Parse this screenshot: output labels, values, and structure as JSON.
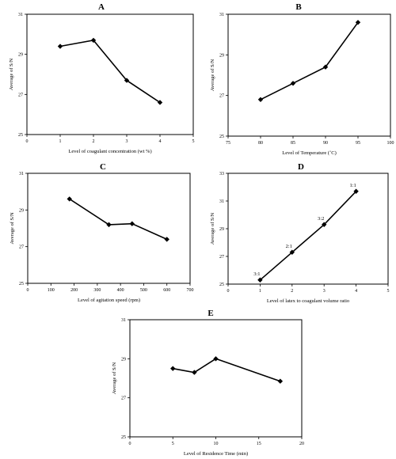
{
  "chart_data": [
    {
      "type": "line",
      "title": "A",
      "xlabel": "Level of coagulant concentration (wt %)",
      "ylabel": "Average of S/N",
      "xlim": [
        0,
        5
      ],
      "ylim": [
        25,
        31
      ],
      "x_ticks": [
        0,
        1,
        2,
        3,
        4,
        5
      ],
      "y_ticks": [
        25,
        27,
        29,
        31
      ],
      "x": [
        1,
        2,
        3,
        4
      ],
      "y": [
        29.4,
        29.7,
        27.7,
        26.6
      ],
      "point_labels": [],
      "grid": false,
      "legend": "none"
    },
    {
      "type": "line",
      "title": "B",
      "xlabel": "Level of Temperature (˚C)",
      "ylabel": "Average of S/N",
      "xlim": [
        75,
        100
      ],
      "ylim": [
        25,
        31
      ],
      "x_ticks": [
        75,
        80,
        85,
        90,
        95,
        100
      ],
      "y_ticks": [
        25,
        27,
        29,
        31
      ],
      "x": [
        80,
        85,
        90,
        95
      ],
      "y": [
        26.8,
        27.6,
        28.4,
        30.6
      ],
      "point_labels": [],
      "grid": false,
      "legend": "none"
    },
    {
      "type": "line",
      "title": "C",
      "xlabel": "Level of agitation speed (rpm)",
      "ylabel": "Average of S/N",
      "xlim": [
        0,
        700
      ],
      "ylim": [
        25,
        31
      ],
      "x_ticks": [
        0,
        100,
        200,
        300,
        400,
        500,
        600,
        700
      ],
      "y_ticks": [
        25,
        27,
        29,
        31
      ],
      "x": [
        180,
        350,
        450,
        600
      ],
      "y": [
        29.6,
        28.2,
        28.25,
        27.4
      ],
      "point_labels": [],
      "grid": false,
      "legend": "none"
    },
    {
      "type": "line",
      "title": "D",
      "xlabel": "Level of latex to coagulant volume ratio",
      "ylabel": "Average of S/N",
      "xlim": [
        0,
        5
      ],
      "ylim": [
        25,
        33
      ],
      "x_ticks": [
        0,
        1,
        2,
        3,
        4,
        5
      ],
      "y_ticks": [
        25,
        27,
        29,
        31,
        33
      ],
      "x": [
        1,
        2,
        3,
        4
      ],
      "y": [
        25.3,
        27.3,
        29.3,
        31.7
      ],
      "point_labels": [
        "3:1",
        "2:1",
        "3:2",
        "1:1"
      ],
      "grid": false,
      "legend": "none"
    },
    {
      "type": "line",
      "title": "E",
      "xlabel": "Level of Residence Time (min)",
      "ylabel": "Average of S/N",
      "xlim": [
        0,
        20
      ],
      "ylim": [
        25,
        31
      ],
      "x_ticks": [
        0,
        5,
        10,
        15,
        20
      ],
      "y_ticks": [
        25,
        27,
        29,
        31
      ],
      "x": [
        5,
        7.5,
        10,
        17.5
      ],
      "y": [
        28.5,
        28.3,
        29.0,
        27.85
      ],
      "point_labels": [],
      "grid": false,
      "legend": "none"
    }
  ]
}
